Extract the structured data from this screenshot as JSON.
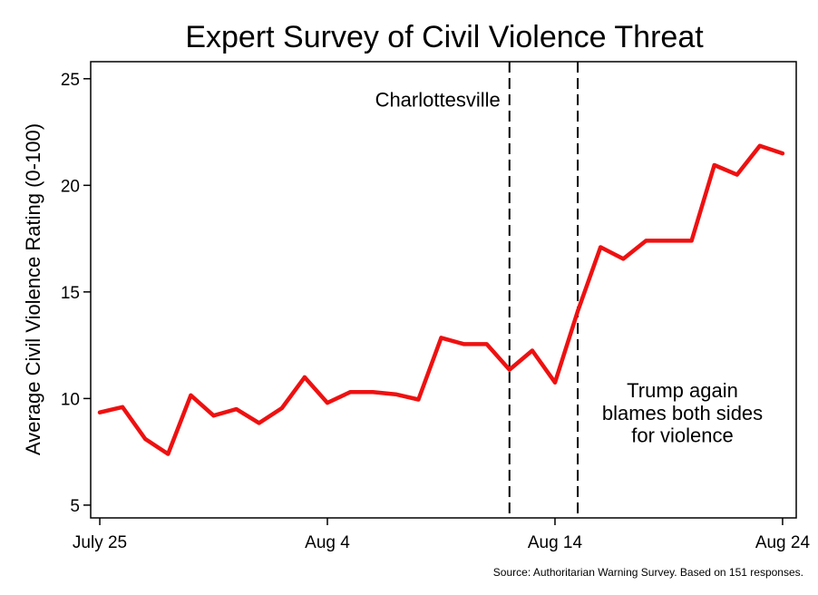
{
  "chart_data": {
    "type": "line",
    "title": "Expert Survey of Civil Violence Threat",
    "xlabel": "",
    "ylabel": "Average Civil Violence Rating (0-100)",
    "source": "Source: Authoritarian Warning Survey. Based on 151 responses.",
    "xlim": [
      -0.4,
      30.6
    ],
    "ylim": [
      4.4,
      25.8
    ],
    "yticks": [
      5,
      10,
      15,
      20,
      25
    ],
    "xticks": [
      {
        "x": 0,
        "label": "July 25"
      },
      {
        "x": 10,
        "label": "Aug 4"
      },
      {
        "x": 20,
        "label": "Aug 14"
      },
      {
        "x": 30,
        "label": "Aug 24"
      }
    ],
    "series": [
      {
        "name": "Average Civil Violence Rating",
        "color": "#ee1111",
        "x": [
          0,
          1,
          2,
          3,
          4,
          5,
          6,
          7,
          8,
          9,
          10,
          11,
          12,
          13,
          14,
          15,
          16,
          17,
          18,
          19,
          20,
          21,
          22,
          23,
          24,
          25,
          26,
          27,
          28,
          29,
          30
        ],
        "values": [
          9.35,
          9.6,
          8.1,
          7.4,
          10.15,
          9.2,
          9.5,
          8.85,
          9.55,
          11.0,
          9.8,
          10.3,
          10.3,
          10.2,
          9.95,
          12.85,
          12.55,
          12.55,
          11.35,
          12.25,
          10.75,
          14.1,
          17.1,
          16.55,
          17.4,
          17.4,
          17.4,
          20.95,
          20.5,
          21.85,
          21.5
        ]
      }
    ],
    "vlines": [
      18,
      21
    ],
    "annotations": [
      {
        "label": "Charlottesville",
        "x": 17.6,
        "y": 23.7,
        "align": "right"
      },
      {
        "label": "Trump again",
        "x": 25.6,
        "y": 10.05,
        "align": "center"
      },
      {
        "label": "blames both sides",
        "x": 25.6,
        "y": 9.0,
        "align": "center"
      },
      {
        "label": "for violence",
        "x": 25.6,
        "y": 7.95,
        "align": "center"
      }
    ]
  }
}
